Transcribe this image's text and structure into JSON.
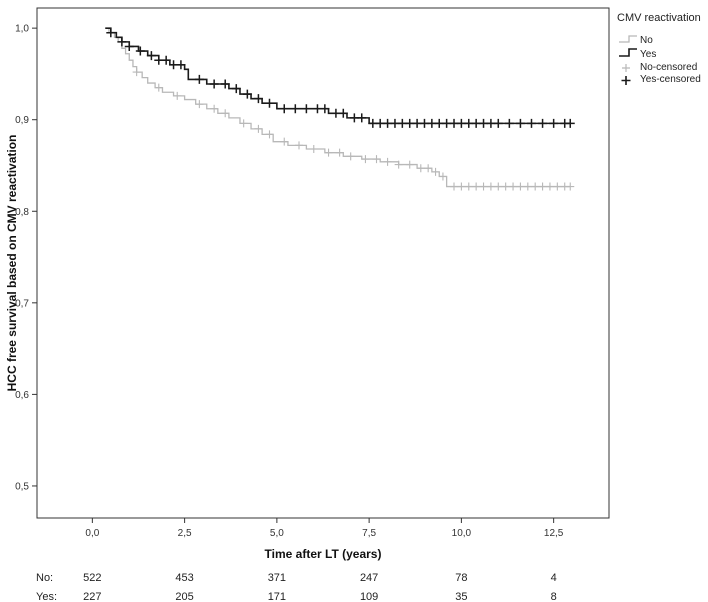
{
  "chart_data": {
    "type": "line",
    "subtype": "kaplan-meier",
    "xlabel": "Time after LT (years)",
    "ylabel": "HCC free survival based on CMV reactivation",
    "xlim": [
      -1.5,
      14.0
    ],
    "ylim": [
      0.465,
      1.022
    ],
    "x_ticks": [
      0,
      2.5,
      5,
      7.5,
      10,
      12.5
    ],
    "x_tick_labels": [
      "0,0",
      "2,5",
      "5,0",
      "7,5",
      "10,0",
      "12,5"
    ],
    "y_ticks": [
      0.5,
      0.6,
      0.7,
      0.8,
      0.9,
      1.0
    ],
    "y_tick_labels": [
      "0,5",
      "0,6",
      "0,7",
      "0,8",
      "0,9",
      "1,0"
    ],
    "grid": false,
    "legend": {
      "title": "CMV reactivation",
      "position": "top-right",
      "entries": [
        "No",
        "Yes",
        "No-censored",
        "Yes-censored"
      ]
    },
    "series": [
      {
        "name": "No",
        "color": "#b8b8b8",
        "steps": [
          [
            0.35,
            1.0
          ],
          [
            0.45,
            0.995
          ],
          [
            0.6,
            0.99
          ],
          [
            0.7,
            0.985
          ],
          [
            0.8,
            0.978
          ],
          [
            0.9,
            0.972
          ],
          [
            1.0,
            0.965
          ],
          [
            1.1,
            0.958
          ],
          [
            1.2,
            0.952
          ],
          [
            1.35,
            0.946
          ],
          [
            1.5,
            0.94
          ],
          [
            1.7,
            0.935
          ],
          [
            1.9,
            0.93
          ],
          [
            2.2,
            0.926
          ],
          [
            2.5,
            0.922
          ],
          [
            2.8,
            0.917
          ],
          [
            3.1,
            0.912
          ],
          [
            3.4,
            0.907
          ],
          [
            3.7,
            0.902
          ],
          [
            4.0,
            0.896
          ],
          [
            4.3,
            0.89
          ],
          [
            4.6,
            0.884
          ],
          [
            4.9,
            0.876
          ],
          [
            5.3,
            0.872
          ],
          [
            5.8,
            0.868
          ],
          [
            6.3,
            0.864
          ],
          [
            6.8,
            0.86
          ],
          [
            7.3,
            0.857
          ],
          [
            7.8,
            0.854
          ],
          [
            8.3,
            0.851
          ],
          [
            8.8,
            0.847
          ],
          [
            9.2,
            0.843
          ],
          [
            9.4,
            0.838
          ],
          [
            9.6,
            0.827
          ],
          [
            12.95,
            0.827
          ]
        ],
        "censor_x": [
          1.2,
          1.8,
          2.3,
          2.9,
          3.3,
          3.6,
          4.1,
          4.5,
          4.8,
          5.2,
          5.6,
          6.0,
          6.4,
          6.7,
          7.0,
          7.4,
          7.7,
          8.0,
          8.3,
          8.6,
          8.9,
          9.1,
          9.3,
          9.5,
          9.8,
          10.0,
          10.2,
          10.4,
          10.6,
          10.8,
          11.0,
          11.2,
          11.4,
          11.6,
          11.8,
          12.0,
          12.2,
          12.4,
          12.6,
          12.8,
          12.95
        ]
      },
      {
        "name": "Yes",
        "color": "#1a1a1a",
        "steps": [
          [
            0.35,
            1.0
          ],
          [
            0.5,
            0.995
          ],
          [
            0.65,
            0.99
          ],
          [
            0.8,
            0.985
          ],
          [
            1.0,
            0.98
          ],
          [
            1.25,
            0.975
          ],
          [
            1.5,
            0.97
          ],
          [
            1.8,
            0.965
          ],
          [
            2.1,
            0.96
          ],
          [
            2.5,
            0.955
          ],
          [
            2.6,
            0.944
          ],
          [
            3.1,
            0.939
          ],
          [
            3.7,
            0.934
          ],
          [
            4.0,
            0.928
          ],
          [
            4.3,
            0.923
          ],
          [
            4.6,
            0.918
          ],
          [
            5.0,
            0.912
          ],
          [
            6.4,
            0.907
          ],
          [
            6.9,
            0.902
          ],
          [
            7.5,
            0.896
          ],
          [
            12.95,
            0.896
          ]
        ],
        "censor_x": [
          0.5,
          0.8,
          1.0,
          1.3,
          1.6,
          1.8,
          2.0,
          2.2,
          2.4,
          2.9,
          3.3,
          3.6,
          3.9,
          4.2,
          4.5,
          4.8,
          5.2,
          5.5,
          5.8,
          6.1,
          6.3,
          6.6,
          6.8,
          7.1,
          7.3,
          7.6,
          7.8,
          8.0,
          8.2,
          8.4,
          8.6,
          8.8,
          9.0,
          9.2,
          9.4,
          9.6,
          9.8,
          10.0,
          10.2,
          10.4,
          10.6,
          10.8,
          11.0,
          11.3,
          11.6,
          11.9,
          12.2,
          12.5,
          12.8,
          12.95
        ]
      }
    ],
    "risk_table": {
      "rows": [
        {
          "label": "No:",
          "values": [
            "522",
            "453",
            "371",
            "247",
            "78",
            "4"
          ]
        },
        {
          "label": "Yes:",
          "values": [
            "227",
            "205",
            "171",
            "109",
            "35",
            "8"
          ]
        }
      ]
    }
  }
}
